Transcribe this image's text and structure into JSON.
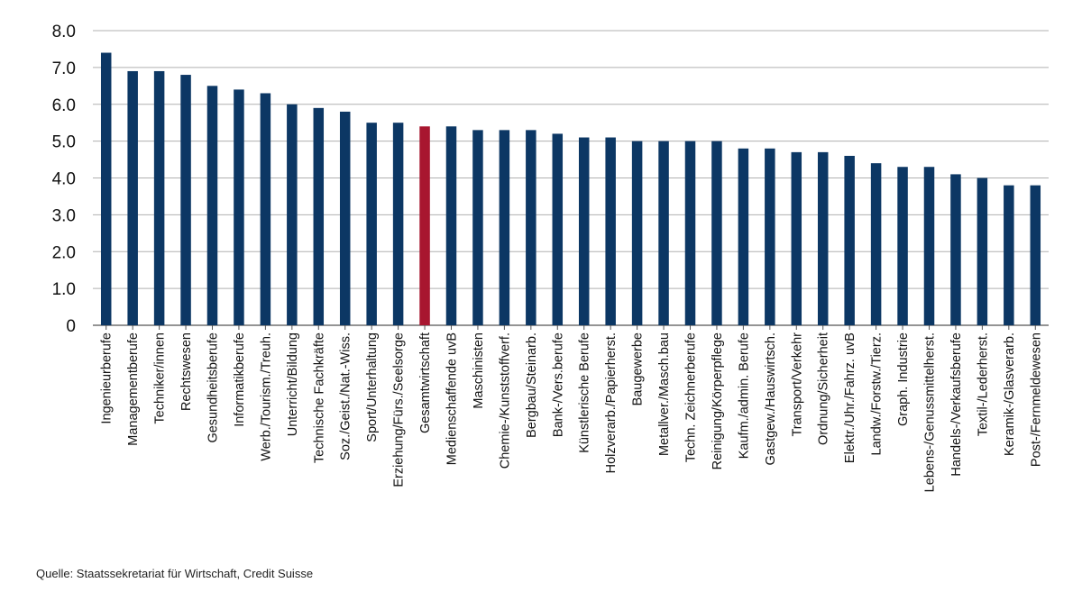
{
  "chart_data": {
    "type": "bar",
    "categories": [
      "Ingenieurberufe",
      "Managementberufe",
      "Techniker/innen",
      "Rechtswesen",
      "Gesundheitsberufe",
      "Informatikberufe",
      "Werb./Tourism./Treuh.",
      "Unterricht/Bildung",
      "Technische Fachkräfte",
      "Soz./Geist./Nat.-Wiss.",
      "Sport/Unterhaltung",
      "Erziehung/Fürs./Seelsorge",
      "Gesamtwirtschaft",
      "Medienschaffende uvB",
      "Maschinisten",
      "Chemie-/Kunststoffverf.",
      "Bergbau/Steinarb.",
      "Bank-/Vers.berufe",
      "Künstlerische Berufe",
      "Holzverarb./Papierherst.",
      "Baugewerbe",
      "Metallver./Masch.bau",
      "Techn. Zeichnerberufe",
      "Reinigung/Körperpflege",
      "Kaufm./admin. Berufe",
      "Gastgew./Hauswirtsch.",
      "Transport/Verkehr",
      "Ordnung/Sicherheit",
      "Elektr./Uhr./Fahrz. uvB",
      "Landw./Forstw./Tierz.",
      "Graph. Industrie",
      "Lebens-/Genussmittelherst.",
      "Handels-/Verkaufsberufe",
      "Textil-/Lederherst.",
      "Keramik-/Glasverarb.",
      "Post-/Fernmeldewesen"
    ],
    "values": [
      7.4,
      6.9,
      6.9,
      6.8,
      6.5,
      6.4,
      6.3,
      6.0,
      5.9,
      5.8,
      5.5,
      5.5,
      5.4,
      5.4,
      5.3,
      5.3,
      5.3,
      5.2,
      5.1,
      5.1,
      5.0,
      5.0,
      5.0,
      5.0,
      4.8,
      4.8,
      4.7,
      4.7,
      4.6,
      4.4,
      4.3,
      4.3,
      4.1,
      4.0,
      3.8,
      3.8
    ],
    "highlight_index": 12,
    "colors": {
      "bar": "#0c3764",
      "highlight": "#a8162f",
      "grid": "#b0b0b0"
    },
    "yticks": [
      "0",
      "1.0",
      "2.0",
      "3.0",
      "4.0",
      "5.0",
      "6.0",
      "7.0",
      "8.0"
    ],
    "ylim": [
      0,
      8
    ],
    "grid": true,
    "title": "",
    "xlabel": "",
    "ylabel": ""
  },
  "source": "Quelle: Staatssekretariat für Wirtschaft, Credit Suisse"
}
